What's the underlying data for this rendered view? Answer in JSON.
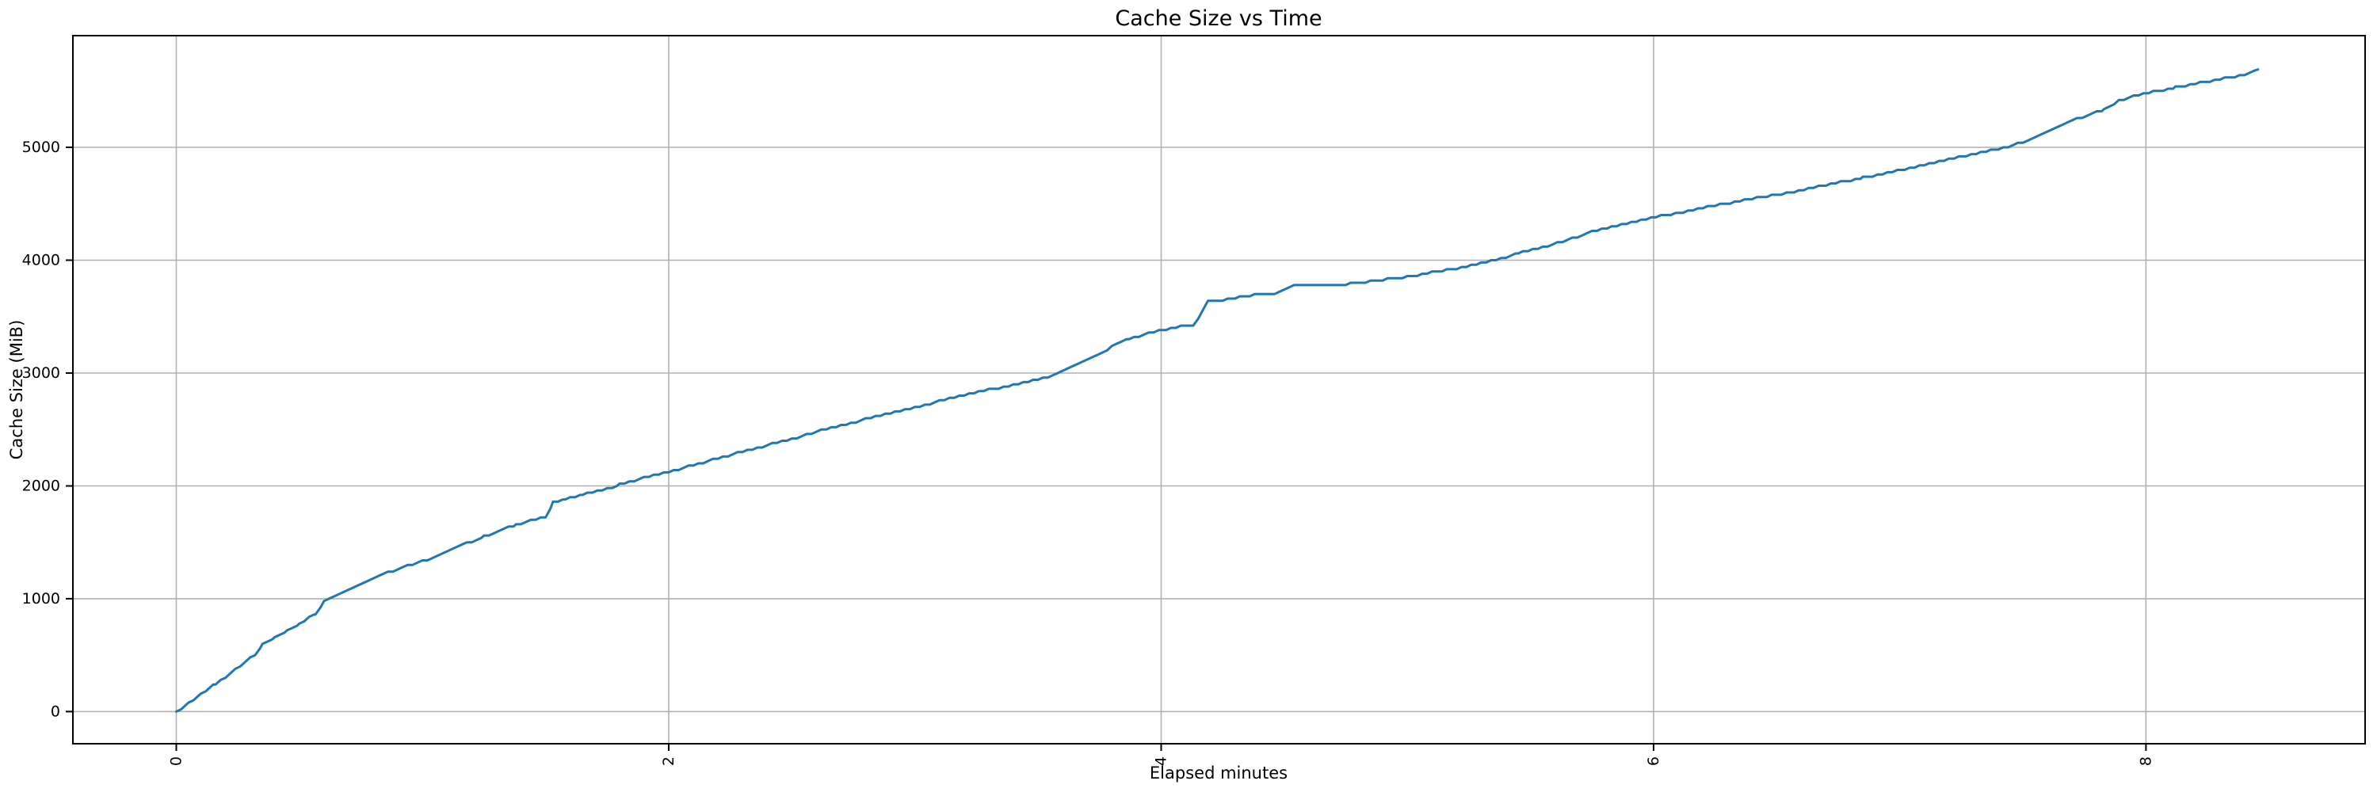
{
  "chart_data": {
    "type": "line",
    "title": "Cache Size vs Time",
    "xlabel": "Elapsed minutes",
    "ylabel": "Cache Size (MiB)",
    "x_ticks": [
      0,
      2,
      4,
      6,
      8
    ],
    "y_ticks": [
      0,
      1000,
      2000,
      3000,
      4000,
      5000
    ],
    "xlim": [
      -0.42,
      8.89
    ],
    "ylim": [
      -285,
      5990
    ],
    "grid": true,
    "legend": false,
    "x_tick_rotation": 90,
    "colors": {
      "line": "#1f77b4",
      "grid": "#b0b0b0",
      "spine": "#000000",
      "background": "#ffffff"
    },
    "series": [
      {
        "name": "cache-size",
        "x": [
          0.0,
          0.02,
          0.05,
          0.08,
          0.1,
          0.13,
          0.16,
          0.2,
          0.24,
          0.28,
          0.32,
          0.35,
          0.4,
          0.45,
          0.5,
          0.54,
          0.565,
          0.6,
          0.62,
          0.66,
          0.72,
          0.78,
          0.84,
          0.9,
          0.96,
          1.0,
          1.06,
          1.12,
          1.18,
          1.25,
          1.31,
          1.38,
          1.44,
          1.5,
          1.53,
          1.58,
          1.65,
          1.73,
          1.8,
          1.9,
          2.0,
          2.1,
          2.2,
          2.3,
          2.4,
          2.5,
          2.6,
          2.7,
          2.8,
          2.9,
          3.0,
          3.1,
          3.2,
          3.3,
          3.4,
          3.5,
          3.6,
          3.7,
          3.8,
          3.87,
          3.95,
          4.0,
          4.04,
          4.13,
          4.19,
          4.28,
          4.38,
          4.48,
          4.54,
          4.65,
          4.77,
          4.88,
          5.0,
          5.1,
          5.2,
          5.3,
          5.36,
          5.45,
          5.55,
          5.65,
          5.75,
          5.85,
          5.97,
          6.1,
          6.25,
          6.4,
          6.55,
          6.7,
          6.85,
          7.0,
          7.12,
          7.25,
          7.4,
          7.5,
          7.6,
          7.7,
          7.8,
          7.83,
          7.89,
          7.95,
          8.03,
          8.12,
          8.22,
          8.32,
          8.4,
          8.44,
          8.455
        ],
        "y": [
          0,
          20,
          75,
          120,
          155,
          200,
          245,
          305,
          370,
          440,
          505,
          590,
          650,
          715,
          775,
          830,
          860,
          975,
          1005,
          1045,
          1105,
          1160,
          1215,
          1260,
          1305,
          1330,
          1385,
          1440,
          1490,
          1550,
          1605,
          1655,
          1695,
          1725,
          1850,
          1880,
          1920,
          1960,
          2010,
          2070,
          2125,
          2185,
          2245,
          2305,
          2360,
          2415,
          2480,
          2535,
          2590,
          2645,
          2695,
          2750,
          2800,
          2850,
          2895,
          2940,
          3010,
          3110,
          3230,
          3300,
          3350,
          3375,
          3405,
          3420,
          3630,
          3660,
          3690,
          3715,
          3775,
          3780,
          3790,
          3820,
          3855,
          3890,
          3925,
          3970,
          4005,
          4060,
          4115,
          4180,
          4250,
          4305,
          4365,
          4420,
          4485,
          4545,
          4595,
          4665,
          4730,
          4800,
          4855,
          4915,
          4985,
          5045,
          5140,
          5240,
          5315,
          5335,
          5415,
          5455,
          5490,
          5530,
          5570,
          5610,
          5645,
          5680,
          5690
        ]
      }
    ]
  }
}
